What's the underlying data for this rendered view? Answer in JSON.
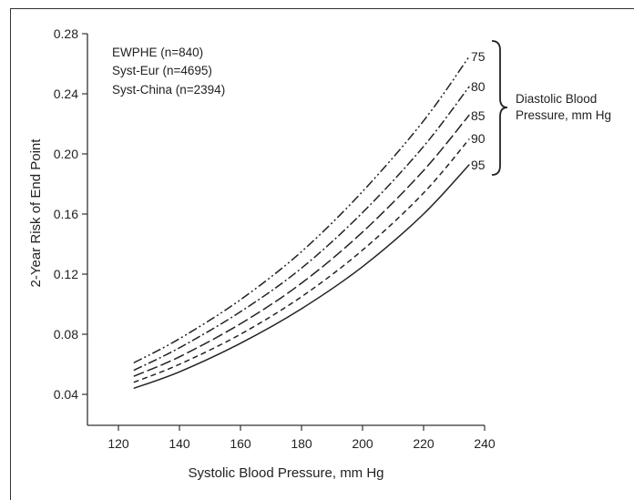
{
  "chart_data": {
    "type": "line",
    "title": "",
    "xlabel": "Systolic Blood Pressure, mm Hg",
    "ylabel": "2-Year Risk of End Point",
    "xlim": [
      110,
      240
    ],
    "ylim": [
      0.02,
      0.28
    ],
    "xticks": [
      "120",
      "140",
      "160",
      "180",
      "200",
      "220",
      "240"
    ],
    "yticks": [
      "0.04",
      "0.08",
      "0.12",
      "0.16",
      "0.20",
      "0.24",
      "0.28"
    ],
    "grid": false,
    "legend": {
      "placement": "top-left",
      "entries": [
        "EWPHE (n=840)",
        "Syst-Eur (n=4695)",
        "Syst-China (n=2394)"
      ]
    },
    "series_group_label": "Diastolic Blood Pressure, mm Hg",
    "series_group_label_lines": [
      "Diastolic Blood",
      "Pressure, mm Hg"
    ],
    "x": [
      125,
      140,
      160,
      180,
      200,
      220,
      235
    ],
    "series": [
      {
        "name": "75",
        "style": "dash-dot-dot",
        "values": [
          0.061,
          0.077,
          0.103,
          0.135,
          0.175,
          0.222,
          0.265
        ]
      },
      {
        "name": "80",
        "style": "dash-dot",
        "values": [
          0.056,
          0.071,
          0.095,
          0.124,
          0.161,
          0.205,
          0.245
        ]
      },
      {
        "name": "85",
        "style": "long-dash",
        "values": [
          0.052,
          0.065,
          0.087,
          0.114,
          0.148,
          0.189,
          0.226
        ]
      },
      {
        "name": "90",
        "style": "short-dash",
        "values": [
          0.048,
          0.06,
          0.08,
          0.105,
          0.136,
          0.174,
          0.21
        ]
      },
      {
        "name": "95",
        "style": "solid",
        "values": [
          0.044,
          0.055,
          0.074,
          0.097,
          0.125,
          0.16,
          0.193
        ]
      }
    ],
    "colors": {
      "line": "#222222",
      "axis": "#333333",
      "text": "#222222"
    }
  }
}
